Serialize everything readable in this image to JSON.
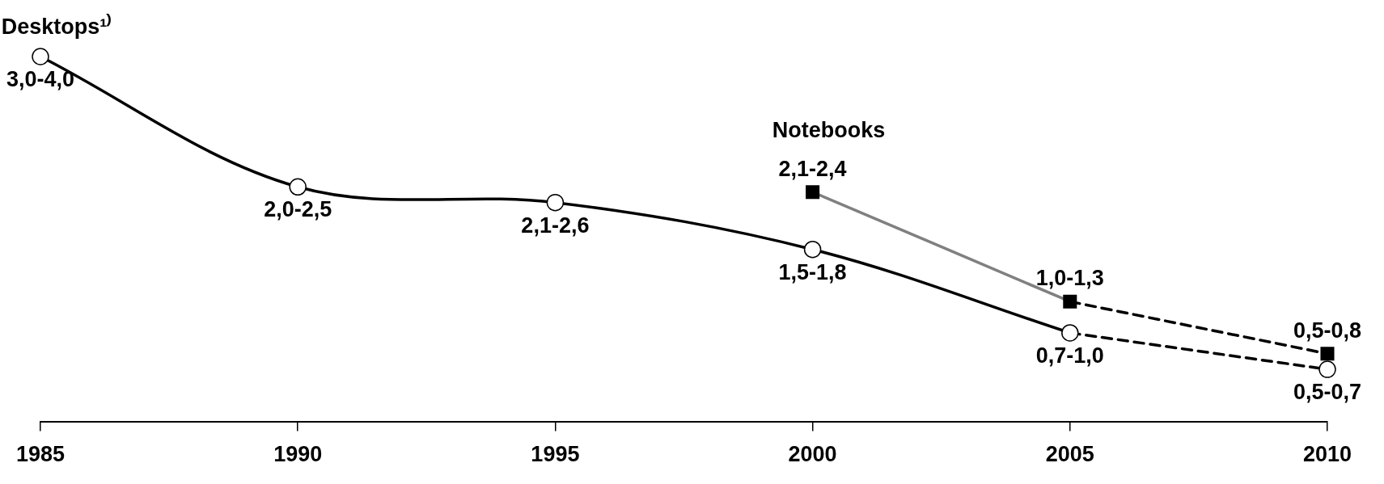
{
  "chart_data": {
    "type": "line",
    "tick_labels": "x",
    "xlim": [
      1985,
      2010
    ],
    "xticks": [
      1985,
      1990,
      1995,
      2000,
      2005,
      2010
    ],
    "series": [
      {
        "name": "Desktops¹⁾",
        "color": "#000000",
        "marker": "circle",
        "line_style": "solid",
        "x": [
          1985,
          1990,
          1995,
          2000,
          2005
        ],
        "values": [
          3.5,
          2.25,
          2.1,
          1.65,
          0.85
        ],
        "value_labels": [
          "3,0-4,0",
          "2,0-2,5",
          "2,1-2,6",
          "1,5-1,8",
          "0,7-1,0"
        ]
      },
      {
        "name": "Notebooks",
        "color": "#808080",
        "marker": "square",
        "line_style": "solid",
        "x": [
          2000,
          2005
        ],
        "values": [
          2.2,
          1.15
        ],
        "value_labels": [
          "2,1-2,4",
          "1,0-1,3"
        ]
      },
      {
        "color": "#000000",
        "marker": "circle",
        "line_style": "dashed",
        "x": [
          2005,
          2010
        ],
        "values": [
          0.85,
          0.5
        ],
        "value_labels": [
          null,
          "0,5-0,7"
        ]
      },
      {
        "color": "#000000",
        "marker": "square",
        "line_style": "dashed",
        "x": [
          2005,
          2010
        ],
        "values": [
          1.15,
          0.65
        ],
        "value_labels": [
          null,
          "0,5-0,8"
        ]
      }
    ]
  }
}
